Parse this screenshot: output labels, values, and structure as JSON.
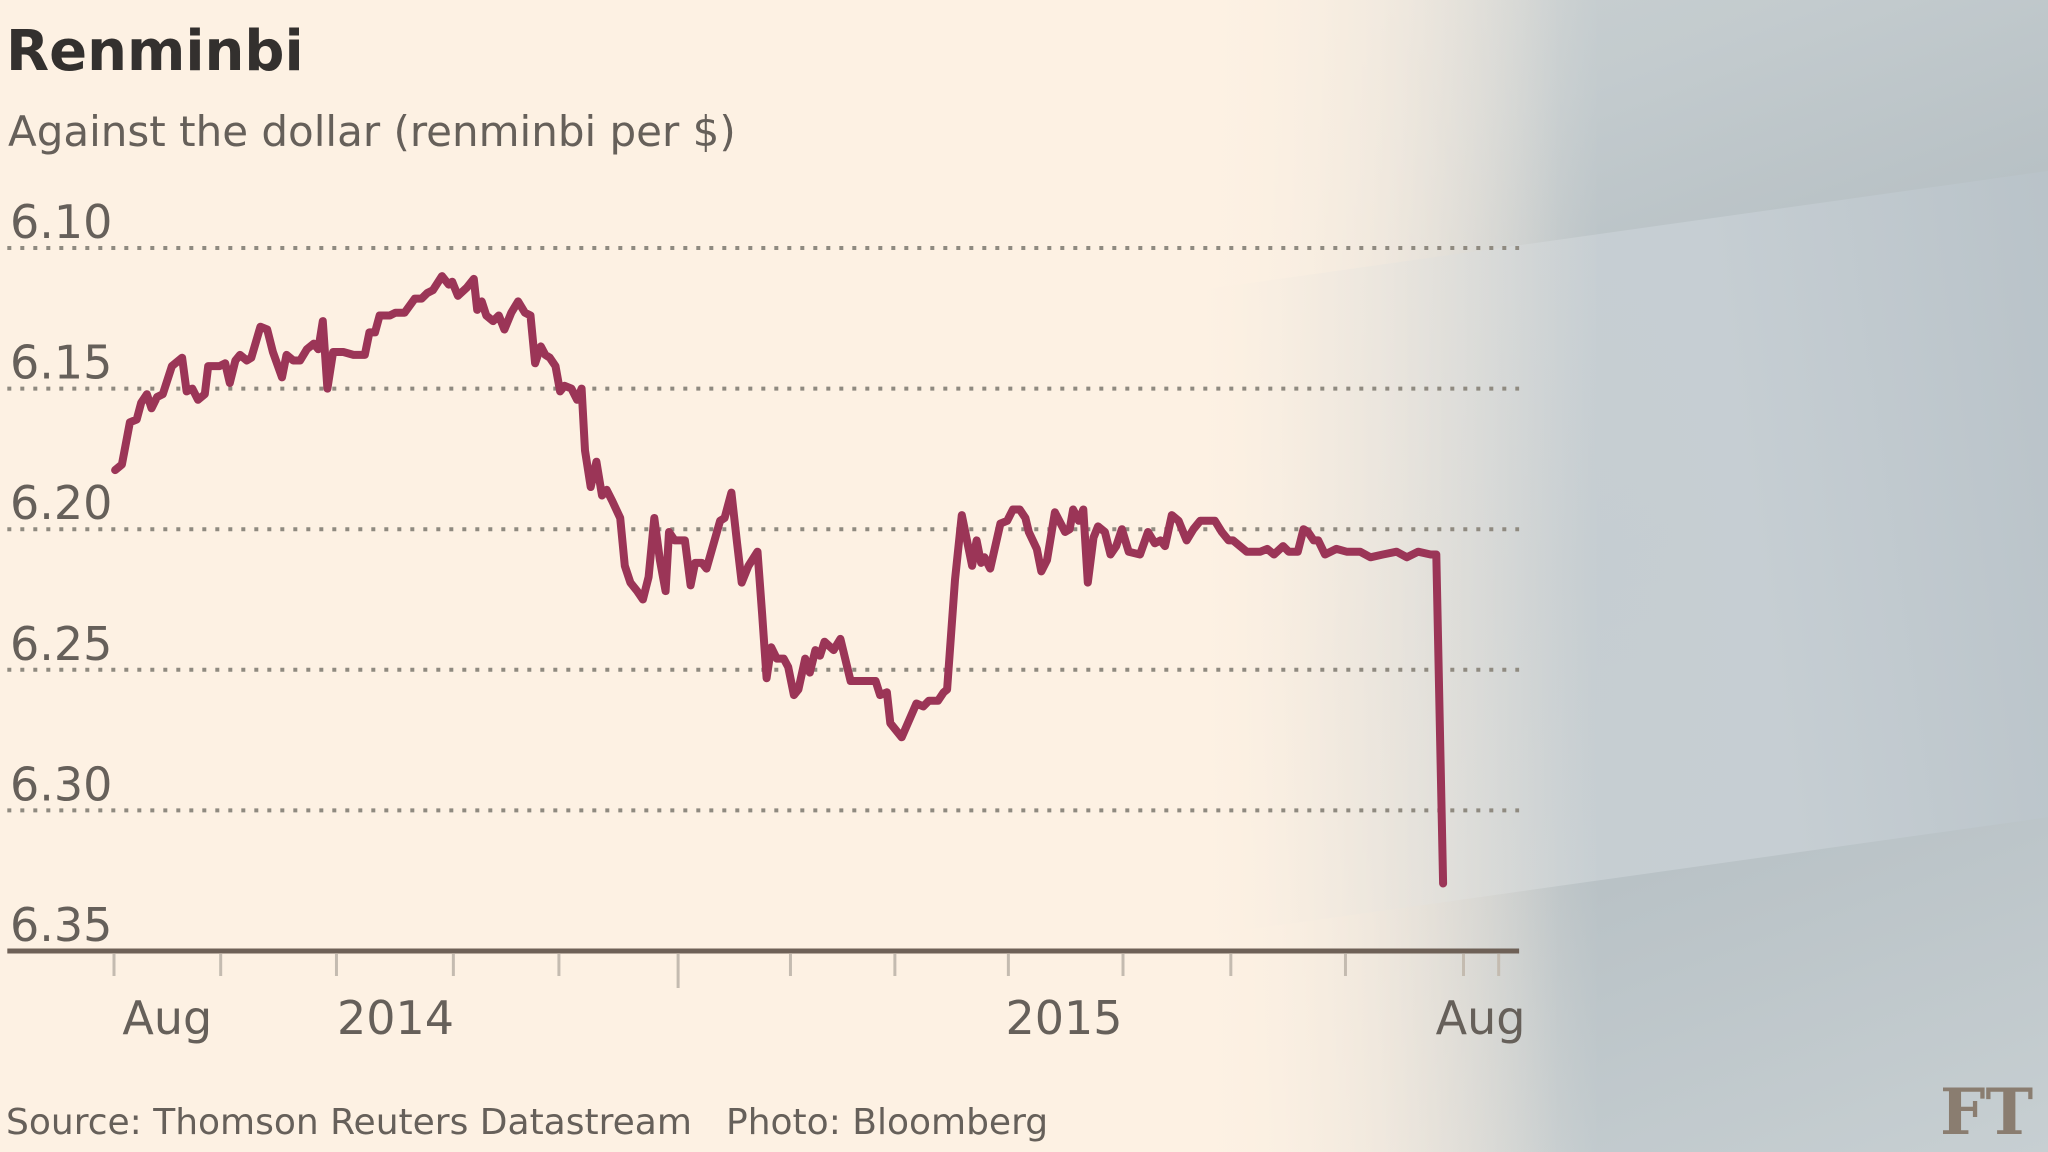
{
  "title": "Renminbi",
  "subtitle": "Against the dollar (renminbi per $)",
  "source": "Source: Thomson Reuters Datastream",
  "photo_credit": "Photo: Bloomberg",
  "logo": "FT",
  "colors": {
    "line": "#9b3557",
    "grid": "#8f8a80",
    "axis": "#6e6157",
    "background": "#fdf1e3"
  },
  "chart_data": {
    "type": "line",
    "title": "Renminbi",
    "subtitle": "Against the dollar (renminbi per $)",
    "xlabel": "",
    "ylabel": "renminbi per $",
    "x_unit": "months from first tick (Aug)",
    "ylim": [
      6.1,
      6.35
    ],
    "y_inverted": true,
    "xlim": [
      -0.94,
      12.38
    ],
    "grid": true,
    "yticks": [
      {
        "value": 6.1,
        "label": "6.10"
      },
      {
        "value": 6.15,
        "label": "6.15"
      },
      {
        "value": 6.2,
        "label": "6.20"
      },
      {
        "value": 6.25,
        "label": "6.25"
      },
      {
        "value": 6.3,
        "label": "6.30"
      },
      {
        "value": 6.35,
        "label": "6.35"
      }
    ],
    "xticks": [
      0,
      0.94,
      1.96,
      2.99,
      3.92,
      4.97,
      5.96,
      6.88,
      7.88,
      8.89,
      9.84,
      10.85,
      11.89,
      12.2
    ],
    "major_xtick": 4.97,
    "xlabels": [
      {
        "value": 0.47,
        "label": "Aug"
      },
      {
        "value": 2.48,
        "label": "2014"
      },
      {
        "value": 8.37,
        "label": "2015"
      },
      {
        "value": 12.04,
        "label": "Aug"
      }
    ],
    "series": [
      {
        "name": "Renminbi per $",
        "x": [
          0.01,
          0.07,
          0.14,
          0.2,
          0.24,
          0.29,
          0.33,
          0.38,
          0.43,
          0.51,
          0.6,
          0.64,
          0.69,
          0.74,
          0.8,
          0.83,
          0.89,
          0.93,
          0.98,
          1.02,
          1.07,
          1.11,
          1.17,
          1.21,
          1.29,
          1.35,
          1.4,
          1.48,
          1.52,
          1.58,
          1.64,
          1.7,
          1.76,
          1.8,
          1.84,
          1.88,
          1.93,
          2.02,
          2.11,
          2.21,
          2.25,
          2.3,
          2.34,
          2.43,
          2.48,
          2.56,
          2.65,
          2.71,
          2.76,
          2.81,
          2.89,
          2.95,
          2.98,
          3.03,
          3.11,
          3.17,
          3.2,
          3.24,
          3.28,
          3.34,
          3.39,
          3.44,
          3.5,
          3.56,
          3.62,
          3.67,
          3.71,
          3.76,
          3.8,
          3.84,
          3.89,
          3.93,
          3.97,
          4.03,
          4.08,
          4.12,
          4.15,
          4.2,
          4.25,
          4.3,
          4.34,
          4.39,
          4.46,
          4.5,
          4.55,
          4.61,
          4.66,
          4.71,
          4.76,
          4.81,
          4.86,
          4.89,
          4.94,
          5.03,
          5.08,
          5.12,
          5.18,
          5.22,
          5.34,
          5.38,
          5.44,
          5.49,
          5.53,
          5.59,
          5.67,
          5.71,
          5.75,
          5.79,
          5.84,
          5.9,
          5.94,
          5.99,
          6.03,
          6.09,
          6.13,
          6.18,
          6.22,
          6.26,
          6.34,
          6.4,
          6.49,
          6.71,
          6.75,
          6.81,
          6.84,
          6.94,
          7.07,
          7.13,
          7.18,
          7.26,
          7.31,
          7.34,
          7.41,
          7.47,
          7.51,
          7.56,
          7.6,
          7.64,
          7.67,
          7.72,
          7.81,
          7.87,
          7.92,
          7.98,
          8.03,
          8.06,
          8.13,
          8.17,
          8.22,
          8.29,
          8.38,
          8.42,
          8.45,
          8.5,
          8.54,
          8.58,
          8.63,
          8.67,
          8.73,
          8.78,
          8.83,
          8.88,
          8.94,
          9.04,
          9.11,
          9.17,
          9.22,
          9.26,
          9.32,
          9.38,
          9.45,
          9.51,
          9.57,
          9.64,
          9.7,
          9.76,
          9.82,
          9.86,
          9.98,
          10.1,
          10.16,
          10.22,
          10.3,
          10.35,
          10.43,
          10.48,
          10.52,
          10.57,
          10.61,
          10.67,
          10.77,
          10.86,
          10.98,
          11.07,
          11.18,
          11.3,
          11.39,
          11.49,
          11.6,
          11.65,
          11.71
        ],
        "y": [
          6.179,
          6.177,
          6.162,
          6.161,
          6.155,
          6.152,
          6.157,
          6.153,
          6.152,
          6.142,
          6.139,
          6.151,
          6.15,
          6.154,
          6.152,
          6.142,
          6.142,
          6.142,
          6.141,
          6.148,
          6.14,
          6.138,
          6.14,
          6.139,
          6.128,
          6.129,
          6.137,
          6.146,
          6.138,
          6.14,
          6.14,
          6.136,
          6.134,
          6.136,
          6.126,
          6.15,
          6.137,
          6.137,
          6.138,
          6.138,
          6.13,
          6.13,
          6.124,
          6.124,
          6.123,
          6.123,
          6.118,
          6.118,
          6.116,
          6.115,
          6.11,
          6.113,
          6.112,
          6.117,
          6.114,
          6.111,
          6.122,
          6.119,
          6.124,
          6.126,
          6.124,
          6.129,
          6.123,
          6.119,
          6.123,
          6.124,
          6.141,
          6.135,
          6.138,
          6.139,
          6.142,
          6.151,
          6.149,
          6.15,
          6.154,
          6.15,
          6.172,
          6.185,
          6.176,
          6.188,
          6.186,
          6.19,
          6.196,
          6.213,
          6.219,
          6.222,
          6.225,
          6.217,
          6.196,
          6.211,
          6.222,
          6.201,
          6.204,
          6.204,
          6.22,
          6.212,
          6.212,
          6.214,
          6.197,
          6.196,
          6.187,
          6.205,
          6.219,
          6.213,
          6.208,
          6.23,
          6.253,
          6.242,
          6.246,
          6.246,
          6.249,
          6.259,
          6.257,
          6.246,
          6.251,
          6.243,
          6.245,
          6.24,
          6.243,
          6.239,
          6.254,
          6.254,
          6.259,
          6.258,
          6.269,
          6.274,
          6.262,
          6.263,
          6.261,
          6.261,
          6.258,
          6.257,
          6.218,
          6.195,
          6.203,
          6.213,
          6.204,
          6.212,
          6.21,
          6.214,
          6.198,
          6.197,
          6.193,
          6.193,
          6.196,
          6.201,
          6.207,
          6.215,
          6.211,
          6.194,
          6.201,
          6.2,
          6.193,
          6.197,
          6.193,
          6.219,
          6.203,
          6.199,
          6.201,
          6.209,
          6.206,
          6.2,
          6.208,
          6.209,
          6.201,
          6.205,
          6.204,
          6.206,
          6.195,
          6.197,
          6.204,
          6.2,
          6.197,
          6.197,
          6.197,
          6.201,
          6.204,
          6.204,
          6.208,
          6.208,
          6.207,
          6.209,
          6.206,
          6.208,
          6.208,
          6.2,
          6.201,
          6.204,
          6.204,
          6.209,
          6.207,
          6.208,
          6.208,
          6.21,
          6.209,
          6.208,
          6.21,
          6.208,
          6.209,
          6.209,
          6.326
        ]
      }
    ]
  }
}
